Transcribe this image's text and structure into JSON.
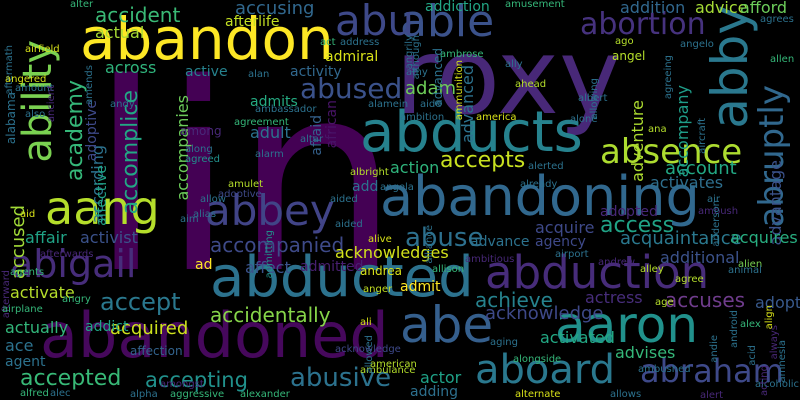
{
  "words": [
    {
      "t": "lin",
      "c": "#440154"
    },
    {
      "t": "roxy",
      "c": "#482878"
    },
    {
      "t": "abandoned",
      "c": "#46085c"
    },
    {
      "t": "abduction",
      "c": "#472c7a"
    },
    {
      "t": "abandon",
      "c": "#fde725"
    },
    {
      "t": "abducts",
      "c": "#26828e"
    },
    {
      "t": "abducted",
      "c": "#2c728e"
    },
    {
      "t": "abandoning",
      "c": "#31688e"
    },
    {
      "t": "aaron",
      "c": "#21918c"
    },
    {
      "t": "abe",
      "c": "#355f8d"
    },
    {
      "t": "able",
      "c": "#3b528b"
    },
    {
      "t": "abby",
      "c": "#2a788e"
    },
    {
      "t": "ability",
      "c": "#7ad151"
    },
    {
      "t": "abbey",
      "c": "#414487"
    },
    {
      "t": "aang",
      "c": "#b5de2b"
    },
    {
      "t": "aboard",
      "c": "#2a788e"
    },
    {
      "t": "abigail",
      "c": "#472d7b"
    },
    {
      "t": "absence",
      "c": "#addc30"
    },
    {
      "t": "abraham",
      "c": "#3e4989"
    },
    {
      "t": "abruptly",
      "c": "#31688e"
    },
    {
      "t": "abu",
      "c": "#3e4989"
    },
    {
      "t": "abused",
      "c": "#3b528b"
    },
    {
      "t": "abuse",
      "c": "#2d708e"
    },
    {
      "t": "abusive",
      "c": "#2c728e"
    },
    {
      "t": "abortion",
      "c": "#46327e"
    },
    {
      "t": "academy",
      "c": "#35b779"
    },
    {
      "t": "accomplice",
      "c": "#22a884"
    },
    {
      "t": "accept",
      "c": "#2a788e"
    },
    {
      "t": "accepted",
      "c": "#38b977"
    },
    {
      "t": "accepting",
      "c": "#21918c"
    },
    {
      "t": "accepts",
      "c": "#c8e020"
    },
    {
      "t": "accident",
      "c": "#3aba76"
    },
    {
      "t": "accidentally",
      "c": "#86d549"
    },
    {
      "t": "accompanied",
      "c": "#3e4a89"
    },
    {
      "t": "accompanies",
      "c": "#6ccd5a"
    },
    {
      "t": "access",
      "c": "#20a386"
    },
    {
      "t": "acknowledge",
      "c": "#3e4989"
    },
    {
      "t": "acknowledges",
      "c": "#d2e21b"
    },
    {
      "t": "advantage",
      "c": "#3b528b"
    },
    {
      "t": "accusing",
      "c": "#31688e"
    },
    {
      "t": "addiction",
      "c": "#22a785"
    },
    {
      "t": "account",
      "c": "#22a884"
    },
    {
      "t": "accompany",
      "c": "#1f9e89"
    },
    {
      "t": "accused",
      "c": "#a2da37"
    },
    {
      "t": "accuses",
      "c": "#6f3c8c"
    },
    {
      "t": "achieve",
      "c": "#26828e"
    },
    {
      "t": "acquaintance",
      "c": "#2a788e"
    },
    {
      "t": "acquire",
      "c": "#3e4989"
    },
    {
      "t": "acquires",
      "c": "#28ae80"
    },
    {
      "t": "acquired",
      "c": "#cde11d"
    },
    {
      "t": "activates",
      "c": "#2e6f8e"
    },
    {
      "t": "activated",
      "c": "#22a884"
    },
    {
      "t": "activist",
      "c": "#3b528b"
    },
    {
      "t": "actress",
      "c": "#472d7b"
    },
    {
      "t": "adopt",
      "c": "#38598c"
    },
    {
      "t": "adam",
      "c": "#6ece58"
    },
    {
      "t": "advanced",
      "c": "#2c728e"
    },
    {
      "t": "action",
      "c": "#2fb47c"
    },
    {
      "t": "adventure",
      "c": "#addc30"
    },
    {
      "t": "advises",
      "c": "#35b779"
    },
    {
      "t": "actor",
      "c": "#1fa187"
    },
    {
      "t": "according",
      "c": "#2c728e"
    },
    {
      "t": "actually",
      "c": "#32b67a"
    },
    {
      "t": "affect",
      "c": "#3b528b"
    },
    {
      "t": "admitted",
      "c": "#481f70"
    },
    {
      "t": "additional",
      "c": "#3b528b"
    },
    {
      "t": "adult",
      "c": "#2c728e"
    },
    {
      "t": "admits",
      "c": "#25ab82"
    },
    {
      "t": "affair",
      "c": "#20a386"
    },
    {
      "t": "adding",
      "c": "#2d708e"
    },
    {
      "t": "african",
      "c": "#481467"
    },
    {
      "t": "afraid",
      "c": "#34618d"
    },
    {
      "t": "addict",
      "c": "#20a386"
    },
    {
      "t": "ace",
      "c": "#2c728e"
    },
    {
      "t": "agent",
      "c": "#2c728e"
    },
    {
      "t": "admit",
      "c": "#fde725"
    },
    {
      "t": "across",
      "c": "#2fb47c"
    },
    {
      "t": "activate",
      "c": "#b5de2b"
    },
    {
      "t": "advice",
      "c": "#a5db36"
    },
    {
      "t": "addition",
      "c": "#31688e"
    },
    {
      "t": "afford",
      "c": "#6ccd5a"
    },
    {
      "t": "ad",
      "c": "#fde725"
    },
    {
      "t": "add",
      "c": "#2c728e"
    },
    {
      "t": "active",
      "c": "#26828e"
    },
    {
      "t": "activity",
      "c": "#31688e"
    },
    {
      "t": "admiral",
      "c": "#d8e219"
    },
    {
      "t": "actual",
      "c": "#a8db34"
    },
    {
      "t": "afterlife",
      "c": "#c2df23"
    },
    {
      "t": "advance",
      "c": "#2c728e"
    },
    {
      "t": "agency",
      "c": "#3e4989"
    },
    {
      "t": "adopted",
      "c": "#482878"
    },
    {
      "t": "adoptive",
      "c": "#3e4989"
    },
    {
      "t": "affective",
      "c": "#20a386"
    },
    {
      "t": "affection",
      "c": "#33638d"
    },
    {
      "t": "alias",
      "c": "#2c728e"
    },
    {
      "t": "amulet",
      "c": "#b5de2b"
    },
    {
      "t": "ali",
      "c": "#d8e219"
    },
    {
      "t": "andrea",
      "c": "#d8e219"
    },
    {
      "t": "anger",
      "c": "#c2df23"
    },
    {
      "t": "alfred",
      "c": "#35b779"
    },
    {
      "t": "alec",
      "c": "#2c728e"
    },
    {
      "t": "ambulance",
      "c": "#b5de2b"
    },
    {
      "t": "advanced",
      "c": "#2c728e"
    },
    {
      "t": "angela",
      "c": "#2c728e"
    },
    {
      "t": "ambush",
      "c": "#482878"
    },
    {
      "t": "alone",
      "c": "#2c728e"
    },
    {
      "t": "alter",
      "c": "#35b779"
    },
    {
      "t": "amusement",
      "c": "#35b779"
    },
    {
      "t": "aftermath",
      "c": "#2c728e"
    },
    {
      "t": "ally",
      "c": "#2c728e"
    },
    {
      "t": "alien",
      "c": "#7ad151"
    },
    {
      "t": "alex",
      "c": "#35b779"
    },
    {
      "t": "agree",
      "c": "#b5de2b"
    },
    {
      "t": "age",
      "c": "#b5de2b"
    },
    {
      "t": "airport",
      "c": "#2c728e"
    },
    {
      "t": "alliance",
      "c": "#2c728e"
    },
    {
      "t": "ambitious",
      "c": "#482878"
    },
    {
      "t": "allison",
      "c": "#35b779"
    },
    {
      "t": "alley",
      "c": "#b5de2b"
    },
    {
      "t": "already",
      "c": "#2c728e"
    },
    {
      "t": "alerted",
      "c": "#2c728e"
    },
    {
      "t": "alive",
      "c": "#d8e219"
    },
    {
      "t": "albright",
      "c": "#b5de2b"
    },
    {
      "t": "aided",
      "c": "#2c728e"
    },
    {
      "t": "allow",
      "c": "#2c728e"
    },
    {
      "t": "aim",
      "c": "#2c728e"
    },
    {
      "t": "among",
      "c": "#482878"
    },
    {
      "t": "along",
      "c": "#2c728e"
    },
    {
      "t": "agreed",
      "c": "#21918c"
    },
    {
      "t": "agreement",
      "c": "#35b779"
    },
    {
      "t": "ambassador",
      "c": "#2c728e"
    },
    {
      "t": "alarm",
      "c": "#2c728e"
    },
    {
      "t": "alamein",
      "c": "#2c728e"
    },
    {
      "t": "aide",
      "c": "#2c728e"
    },
    {
      "t": "ambition",
      "c": "#2c728e"
    },
    {
      "t": "america",
      "c": "#d8e219"
    },
    {
      "t": "ahead",
      "c": "#b5de2b"
    },
    {
      "t": "albert",
      "c": "#2c728e"
    },
    {
      "t": "ana",
      "c": "#b5de2b"
    },
    {
      "t": "angel",
      "c": "#b5de2b"
    },
    {
      "t": "ago",
      "c": "#b5de2b"
    },
    {
      "t": "angelo",
      "c": "#2c728e"
    },
    {
      "t": "amends",
      "c": "#2c728e"
    },
    {
      "t": "angered",
      "c": "#d8e219"
    },
    {
      "t": "airfield",
      "c": "#d8e219"
    },
    {
      "t": "afterward",
      "c": "#482878"
    },
    {
      "t": "amount",
      "c": "#2c728e"
    },
    {
      "t": "ancient",
      "c": "#482878"
    },
    {
      "t": "also",
      "c": "#2c728e"
    },
    {
      "t": "alabama",
      "c": "#2c728e"
    },
    {
      "t": "alan",
      "c": "#2c728e"
    },
    {
      "t": "amy",
      "c": "#2c728e"
    },
    {
      "t": "ambrose",
      "c": "#35b779"
    },
    {
      "t": "although",
      "c": "#2c728e"
    },
    {
      "t": "address",
      "c": "#2c728e"
    },
    {
      "t": "admitting",
      "c": "#21918c"
    },
    {
      "t": "airplane",
      "c": "#35b779"
    },
    {
      "t": "angry",
      "c": "#35b779"
    },
    {
      "t": "afterwards",
      "c": "#482878"
    },
    {
      "t": "aid",
      "c": "#d8e219"
    },
    {
      "t": "andy",
      "c": "#2c728e"
    },
    {
      "t": "agents",
      "c": "#35b779"
    },
    {
      "t": "amongst",
      "c": "#482878"
    },
    {
      "t": "alexander",
      "c": "#35b779"
    },
    {
      "t": "aggressive",
      "c": "#35b779"
    },
    {
      "t": "alpha",
      "c": "#2c728e"
    },
    {
      "t": "alternate",
      "c": "#d8e219"
    },
    {
      "t": "allows",
      "c": "#2c728e"
    },
    {
      "t": "alert",
      "c": "#482878"
    },
    {
      "t": "alcoholic",
      "c": "#2c728e"
    },
    {
      "t": "amnesia",
      "c": "#2c728e"
    },
    {
      "t": "always",
      "c": "#482878"
    },
    {
      "t": "align",
      "c": "#d8e219"
    },
    {
      "t": "acting",
      "c": "#482878"
    },
    {
      "t": "acid",
      "c": "#2c728e"
    },
    {
      "t": "android",
      "c": "#2c728e"
    },
    {
      "t": "andie",
      "c": "#2c728e"
    },
    {
      "t": "anderson",
      "c": "#2c728e"
    },
    {
      "t": "animal",
      "c": "#2c728e"
    },
    {
      "t": "aircraft",
      "c": "#2c728e"
    },
    {
      "t": "agreeing",
      "c": "#2c728e"
    },
    {
      "t": "allowing",
      "c": "#2c728e"
    },
    {
      "t": "ambushed",
      "c": "#2c728e"
    },
    {
      "t": "alongside",
      "c": "#35b779"
    },
    {
      "t": "aging",
      "c": "#2c728e"
    },
    {
      "t": "allowed",
      "c": "#2c728e"
    },
    {
      "t": "american",
      "c": "#b5de2b"
    },
    {
      "t": "altar",
      "c": "#2c728e"
    },
    {
      "t": "air",
      "c": "#2c728e"
    },
    {
      "t": "allen",
      "c": "#35b779"
    },
    {
      "t": "agrees",
      "c": "#2c728e"
    },
    {
      "t": "angrily",
      "c": "#2c728e"
    },
    {
      "t": "andrew",
      "c": "#482878"
    },
    {
      "t": "ammunition",
      "c": "#d8e219"
    },
    {
      "t": "act",
      "c": "#35b779"
    },
    {
      "t": "aided",
      "c": "#2c728e"
    },
    {
      "t": "adoptive",
      "c": "#3e4989"
    },
    {
      "t": "acknowledge",
      "c": "#3e4989"
    }
  ]
}
